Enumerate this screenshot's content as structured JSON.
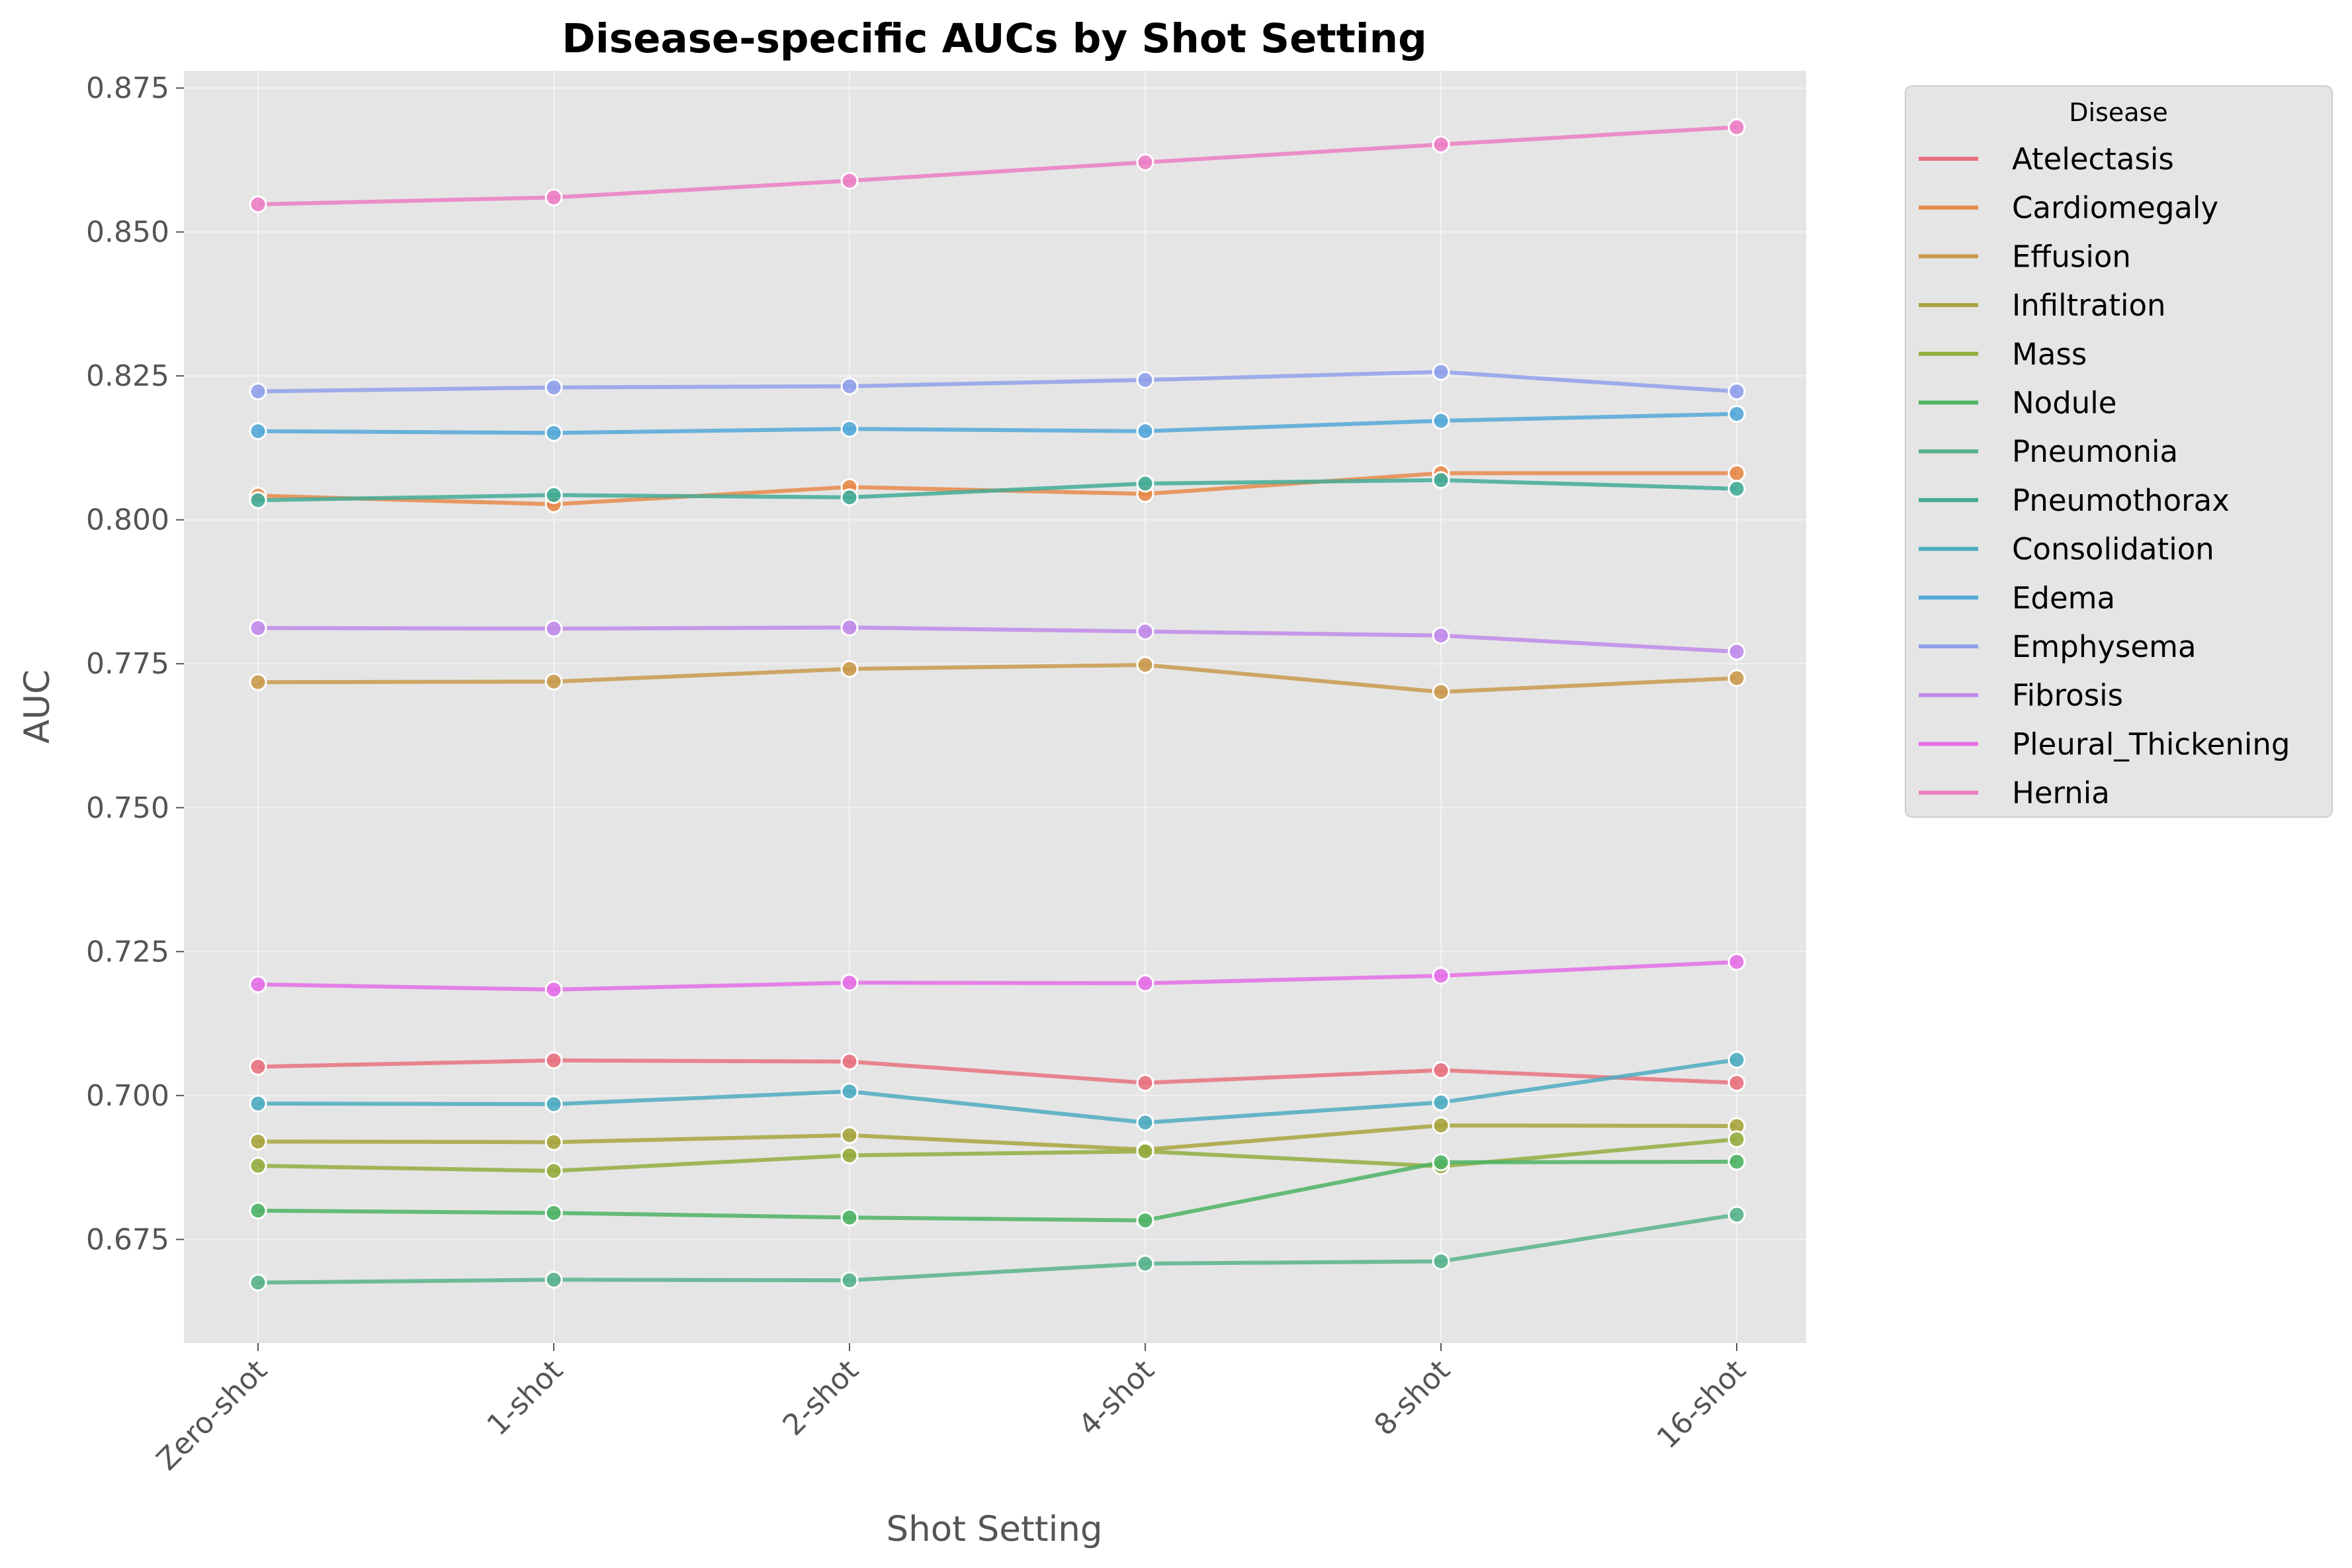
{
  "chart_data": {
    "type": "line",
    "title": "Disease-specific AUCs by Shot Setting",
    "xlabel": "Shot Setting",
    "ylabel": "AUC",
    "categories": [
      "Zero-shot",
      "1-shot",
      "2-shot",
      "4-shot",
      "8-shot",
      "16-shot"
    ],
    "ylim": [
      0.657,
      0.878
    ],
    "yticks": [
      "0.675",
      "0.700",
      "0.725",
      "0.750",
      "0.775",
      "0.800",
      "0.825",
      "0.850",
      "0.875"
    ],
    "grid": true,
    "legend": {
      "title": "Disease",
      "placement": "outside-right"
    },
    "series": [
      {
        "name": "Atelectasis",
        "color": "#e7727e",
        "values": [
          0.705,
          0.7061,
          0.7059,
          0.7022,
          0.7044,
          0.7022
        ]
      },
      {
        "name": "Cardiomegaly",
        "color": "#e7894b",
        "values": [
          0.8042,
          0.8027,
          0.8057,
          0.8045,
          0.8081,
          0.8081
        ]
      },
      {
        "name": "Effusion",
        "color": "#c99a4e",
        "values": [
          0.7718,
          0.7719,
          0.7741,
          0.7748,
          0.7701,
          0.7725
        ]
      },
      {
        "name": "Infiltration",
        "color": "#a8a43e",
        "values": [
          0.692,
          0.6919,
          0.6931,
          0.6906,
          0.6948,
          0.6947
        ]
      },
      {
        "name": "Mass",
        "color": "#93ad3f",
        "values": [
          0.6878,
          0.6869,
          0.6896,
          0.6903,
          0.6877,
          0.6924
        ]
      },
      {
        "name": "Nodule",
        "color": "#4eb364",
        "values": [
          0.68,
          0.6796,
          0.6788,
          0.6783,
          0.6884,
          0.6885
        ]
      },
      {
        "name": "Pneumonia",
        "color": "#58b38c",
        "values": [
          0.6675,
          0.668,
          0.6679,
          0.6708,
          0.6712,
          0.6793
        ]
      },
      {
        "name": "Pneumothorax",
        "color": "#43ab96",
        "values": [
          0.8034,
          0.8043,
          0.8039,
          0.8063,
          0.8069,
          0.8054
        ]
      },
      {
        "name": "Consolidation",
        "color": "#4eacc1",
        "values": [
          0.6986,
          0.6985,
          0.7007,
          0.6953,
          0.6988,
          0.7062
        ]
      },
      {
        "name": "Edema",
        "color": "#54a8d8",
        "values": [
          0.8154,
          0.8151,
          0.8158,
          0.8154,
          0.8172,
          0.8184
        ]
      },
      {
        "name": "Emphysema",
        "color": "#90a1ea",
        "values": [
          0.8223,
          0.823,
          0.8232,
          0.8243,
          0.8257,
          0.8223
        ]
      },
      {
        "name": "Fibrosis",
        "color": "#c08bea",
        "values": [
          0.7812,
          0.7811,
          0.7813,
          0.7806,
          0.7799,
          0.7771
        ]
      },
      {
        "name": "Pleural_Thickening",
        "color": "#e46fe6",
        "values": [
          0.7193,
          0.7184,
          0.7196,
          0.7195,
          0.7208,
          0.7232
        ]
      },
      {
        "name": "Hernia",
        "color": "#ec7ec4",
        "values": [
          0.8548,
          0.856,
          0.8589,
          0.8621,
          0.8652,
          0.8682
        ]
      }
    ]
  }
}
